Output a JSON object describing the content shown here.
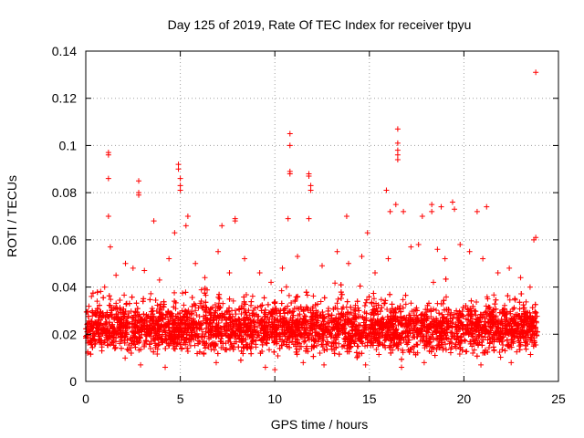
{
  "chart_data": {
    "type": "scatter",
    "title": "Day 125 of 2019, Rate Of TEC Index for receiver tpyu",
    "xlabel": "GPS time / hours",
    "ylabel": "ROTI / TECUs",
    "xlim": [
      0,
      25
    ],
    "ylim": [
      0,
      0.14
    ],
    "grid": true,
    "x_ticks": [
      "0",
      "5",
      "10",
      "15",
      "20",
      "25"
    ],
    "y_ticks": [
      "0",
      "0.02",
      "0.04",
      "0.06",
      "0.08",
      "0.1",
      "0.12",
      "0.14"
    ],
    "marker": "+",
    "color": "#ff0000",
    "dense_band": {
      "x_start": 0,
      "x_end": 23.9,
      "y_low": 0.008,
      "y_high": 0.035,
      "typical": 0.022
    },
    "series": [
      {
        "name": "ROTI",
        "points": [
          [
            1.2,
            0.097
          ],
          [
            1.2,
            0.096
          ],
          [
            1.2,
            0.086
          ],
          [
            1.2,
            0.07
          ],
          [
            1.3,
            0.057
          ],
          [
            2.8,
            0.085
          ],
          [
            2.8,
            0.08
          ],
          [
            2.8,
            0.079
          ],
          [
            3.6,
            0.068
          ],
          [
            4.9,
            0.092
          ],
          [
            4.9,
            0.09
          ],
          [
            5.0,
            0.086
          ],
          [
            5.0,
            0.083
          ],
          [
            5.0,
            0.081
          ],
          [
            5.4,
            0.07
          ],
          [
            5.3,
            0.066
          ],
          [
            4.7,
            0.063
          ],
          [
            7.2,
            0.066
          ],
          [
            7.9,
            0.069
          ],
          [
            7.9,
            0.068
          ],
          [
            10.8,
            0.105
          ],
          [
            10.8,
            0.1
          ],
          [
            10.8,
            0.089
          ],
          [
            10.8,
            0.088
          ],
          [
            10.7,
            0.069
          ],
          [
            11.8,
            0.088
          ],
          [
            11.8,
            0.087
          ],
          [
            11.9,
            0.083
          ],
          [
            11.9,
            0.081
          ],
          [
            11.8,
            0.069
          ],
          [
            13.8,
            0.07
          ],
          [
            14.9,
            0.063
          ],
          [
            15.9,
            0.081
          ],
          [
            16.5,
            0.107
          ],
          [
            16.5,
            0.101
          ],
          [
            16.5,
            0.098
          ],
          [
            16.5,
            0.096
          ],
          [
            16.5,
            0.094
          ],
          [
            16.4,
            0.075
          ],
          [
            16.8,
            0.072
          ],
          [
            16.1,
            0.072
          ],
          [
            17.8,
            0.07
          ],
          [
            18.3,
            0.075
          ],
          [
            18.3,
            0.072
          ],
          [
            18.8,
            0.074
          ],
          [
            19.4,
            0.076
          ],
          [
            19.5,
            0.073
          ],
          [
            20.7,
            0.072
          ],
          [
            21.2,
            0.074
          ],
          [
            23.8,
            0.131
          ],
          [
            23.8,
            0.061
          ],
          [
            23.7,
            0.06
          ],
          [
            0.3,
            0.036
          ],
          [
            0.6,
            0.034
          ],
          [
            1.0,
            0.04
          ],
          [
            1.6,
            0.045
          ],
          [
            2.1,
            0.05
          ],
          [
            2.5,
            0.048
          ],
          [
            3.1,
            0.047
          ],
          [
            3.9,
            0.043
          ],
          [
            4.4,
            0.052
          ],
          [
            5.8,
            0.05
          ],
          [
            6.3,
            0.044
          ],
          [
            7.0,
            0.055
          ],
          [
            7.6,
            0.046
          ],
          [
            8.4,
            0.052
          ],
          [
            9.2,
            0.046
          ],
          [
            9.8,
            0.042
          ],
          [
            10.4,
            0.048
          ],
          [
            11.2,
            0.053
          ],
          [
            12.5,
            0.049
          ],
          [
            13.3,
            0.055
          ],
          [
            13.9,
            0.05
          ],
          [
            14.6,
            0.053
          ],
          [
            15.3,
            0.046
          ],
          [
            16.0,
            0.052
          ],
          [
            17.2,
            0.057
          ],
          [
            17.6,
            0.058
          ],
          [
            18.6,
            0.056
          ],
          [
            19.0,
            0.052
          ],
          [
            19.8,
            0.058
          ],
          [
            20.3,
            0.055
          ],
          [
            21.0,
            0.052
          ],
          [
            21.8,
            0.046
          ],
          [
            22.4,
            0.048
          ],
          [
            23.0,
            0.044
          ],
          [
            23.5,
            0.04
          ],
          [
            0.1,
            0.012
          ],
          [
            2.9,
            0.007
          ],
          [
            4.2,
            0.006
          ],
          [
            6.9,
            0.008
          ],
          [
            9.5,
            0.006
          ],
          [
            10.0,
            0.005
          ],
          [
            11.5,
            0.008
          ],
          [
            12.6,
            0.007
          ],
          [
            14.8,
            0.007
          ],
          [
            16.7,
            0.006
          ],
          [
            17.9,
            0.008
          ],
          [
            20.9,
            0.007
          ],
          [
            22.5,
            0.008
          ]
        ]
      }
    ]
  }
}
